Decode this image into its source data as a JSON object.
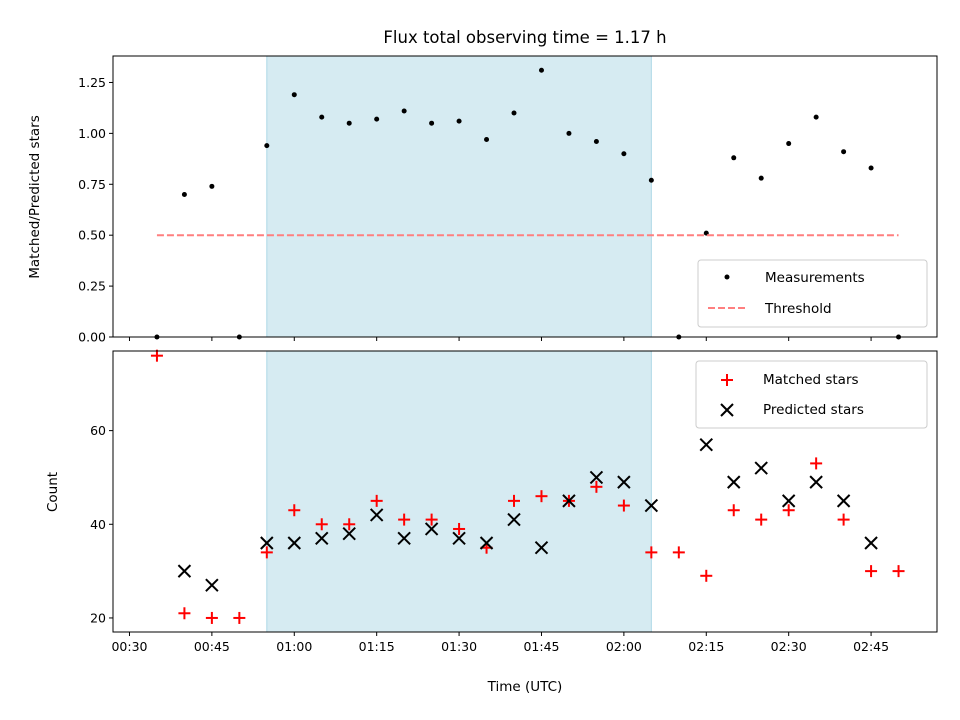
{
  "chart_data": [
    {
      "type": "scatter",
      "title": "Flux total observing time = 1.17 h",
      "xlabel": "",
      "ylabel": "Matched/Predicted stars",
      "ylim": [
        0,
        1.38
      ],
      "yticks": [
        "0.00",
        "0.25",
        "0.50",
        "0.75",
        "1.00",
        "1.25"
      ],
      "xlim": [
        "00:27",
        "02:57"
      ],
      "shaded_interval": [
        "00:55",
        "02:05"
      ],
      "series": [
        {
          "name": "Measurements",
          "marker": "dot",
          "color": "#000000",
          "x": [
            "00:35",
            "00:40",
            "00:45",
            "00:50",
            "00:55",
            "01:00",
            "01:05",
            "01:10",
            "01:15",
            "01:20",
            "01:25",
            "01:30",
            "01:35",
            "01:40",
            "01:45",
            "01:50",
            "01:55",
            "02:00",
            "02:05",
            "02:10",
            "02:15",
            "02:20",
            "02:25",
            "02:30",
            "02:35",
            "02:40",
            "02:45",
            "02:50"
          ],
          "y": [
            0.0,
            0.7,
            0.74,
            0.0,
            0.94,
            1.19,
            1.08,
            1.05,
            1.07,
            1.11,
            1.05,
            1.06,
            0.97,
            1.1,
            1.31,
            1.0,
            0.96,
            0.9,
            0.77,
            0.0,
            0.51,
            0.88,
            0.78,
            0.95,
            1.08,
            0.91,
            0.83,
            0.0
          ]
        },
        {
          "name": "Threshold",
          "marker": "dashed-line",
          "color": "#ff7f7f",
          "x": [
            "00:35",
            "02:50"
          ],
          "y": [
            0.5,
            0.5
          ]
        }
      ],
      "legend_position": "lower-right",
      "grid": false
    },
    {
      "type": "scatter",
      "title": "",
      "xlabel": "Time (UTC)",
      "ylabel": "Count",
      "ylim": [
        17,
        77
      ],
      "yticks": [
        "20",
        "40",
        "60"
      ],
      "xticks": [
        "00:30",
        "00:45",
        "01:00",
        "01:15",
        "01:30",
        "01:45",
        "02:00",
        "02:15",
        "02:30",
        "02:45"
      ],
      "xlim": [
        "00:27",
        "02:57"
      ],
      "shaded_interval": [
        "00:55",
        "02:05"
      ],
      "series": [
        {
          "name": "Matched stars",
          "marker": "plus",
          "color": "#ff0000",
          "x": [
            "00:35",
            "00:40",
            "00:45",
            "00:50",
            "00:55",
            "01:00",
            "01:05",
            "01:10",
            "01:15",
            "01:20",
            "01:25",
            "01:30",
            "01:35",
            "01:40",
            "01:45",
            "01:50",
            "01:55",
            "02:00",
            "02:05",
            "02:10",
            "02:15",
            "02:20",
            "02:25",
            "02:30",
            "02:35",
            "02:40",
            "02:45",
            "02:50"
          ],
          "y": [
            76,
            21,
            20,
            20,
            34,
            43,
            40,
            40,
            45,
            41,
            41,
            39,
            35,
            45,
            46,
            45,
            48,
            44,
            34,
            34,
            29,
            43,
            41,
            43,
            53,
            41,
            30,
            30
          ]
        },
        {
          "name": "Predicted stars",
          "marker": "x",
          "color": "#000000",
          "x": [
            "00:40",
            "00:45",
            "00:55",
            "01:00",
            "01:05",
            "01:10",
            "01:15",
            "01:20",
            "01:25",
            "01:30",
            "01:35",
            "01:40",
            "01:45",
            "01:50",
            "01:55",
            "02:00",
            "02:05",
            "02:15",
            "02:20",
            "02:25",
            "02:30",
            "02:35",
            "02:40",
            "02:45"
          ],
          "y": [
            30,
            27,
            36,
            36,
            37,
            38,
            42,
            37,
            39,
            37,
            36,
            41,
            35,
            45,
            50,
            49,
            44,
            57,
            49,
            52,
            45,
            49,
            45,
            36
          ]
        }
      ],
      "legend_position": "upper-right",
      "grid": false
    }
  ],
  "colors": {
    "shade": "#add8e6",
    "matched": "#ff0000",
    "predicted": "#000000",
    "threshold": "#ff7f7f"
  }
}
